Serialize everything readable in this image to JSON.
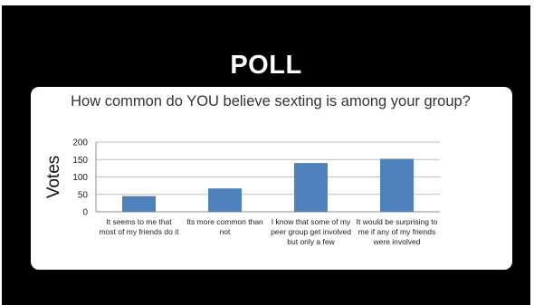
{
  "slide": {
    "title": "POLL"
  },
  "chart_data": {
    "type": "bar",
    "title": "How common do YOU believe sexting is among your group?",
    "xlabel": "",
    "ylabel": "Votes",
    "ylim": [
      0,
      200
    ],
    "yticks": [
      0,
      50,
      100,
      150,
      200
    ],
    "grid": true,
    "categories": [
      "It seems to me that most of my friends do it",
      "Its more common than not",
      "I know that some of my peer group get involved but only a few",
      "It would be surprising to me if any of my friends were involved"
    ],
    "values": [
      45,
      67,
      140,
      152
    ],
    "bar_color": "#4f81bd"
  }
}
